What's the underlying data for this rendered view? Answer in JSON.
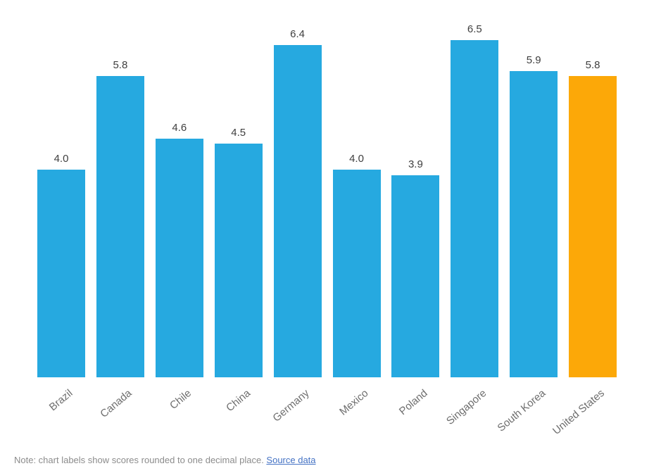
{
  "chart_data": {
    "type": "bar",
    "title": "",
    "xlabel": "",
    "ylabel": "",
    "categories": [
      "Brazil",
      "Canada",
      "Chile",
      "China",
      "Germany",
      "Mexico",
      "Poland",
      "Singapore",
      "South Korea",
      "United States"
    ],
    "values": [
      4.0,
      5.8,
      4.6,
      4.5,
      6.4,
      4.0,
      3.9,
      6.5,
      5.9,
      5.8
    ],
    "value_labels": [
      "4.0",
      "5.8",
      "4.6",
      "4.5",
      "6.4",
      "4.0",
      "3.9",
      "6.5",
      "5.9",
      "5.8"
    ],
    "highlight_category": "United States",
    "bar_color": "#26A9E0",
    "highlight_color": "#FCA808",
    "value_label_color": "#3F3F3F",
    "category_label_color": "#6E6E6E",
    "category_label_rotation_deg": -40,
    "ylim": [
      0,
      7
    ],
    "grid": false,
    "legend": false,
    "axis_lines": false
  },
  "footnote": {
    "text": "Note: chart labels show scores rounded to one decimal place. ",
    "link_text": "Source data"
  }
}
